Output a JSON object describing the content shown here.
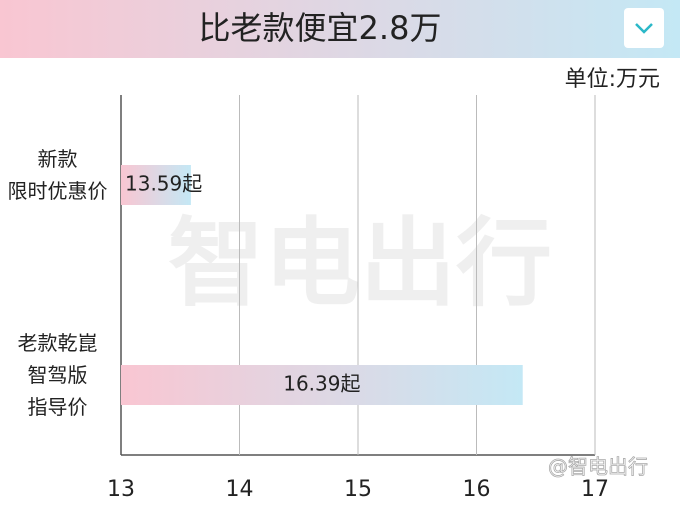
{
  "chart_data": {
    "type": "hbar",
    "title": "比老款便宜2.8万",
    "unit_label": "单位:万元",
    "categories": [
      "新款\n限时优惠价",
      "老款乾崑\n智驾版\n指导价"
    ],
    "values": [
      13.59,
      16.39
    ],
    "value_labels": [
      "13.59起",
      "16.39起"
    ],
    "colors": [
      "#f9c6d2",
      "#c4e8f5"
    ],
    "xlim": [
      13,
      17
    ],
    "xticks": [
      13,
      14,
      15,
      16,
      17
    ],
    "grid": true,
    "watermark": "智电出行",
    "credit": "@智电出行"
  }
}
